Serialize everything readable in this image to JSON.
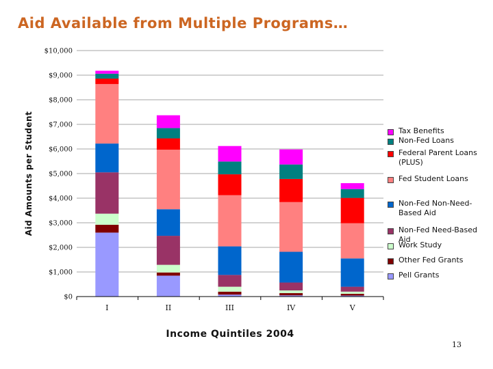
{
  "page": {
    "title": "Aid Available from Multiple Programs…",
    "page_number": "13"
  },
  "chart_data": {
    "type": "bar",
    "stacked": true,
    "title": "Aid Available from Multiple Programs…",
    "xlabel": "Income Quintiles 2004",
    "ylabel": "Aid Amounts per Student",
    "categories": [
      "I",
      "II",
      "III",
      "IV",
      "V"
    ],
    "ylim": [
      0,
      10000
    ],
    "yticks": [
      0,
      1000,
      2000,
      3000,
      4000,
      5000,
      6000,
      7000,
      8000,
      9000,
      10000
    ],
    "ytick_labels": [
      "$0",
      "$1,000",
      "$2,000",
      "$3,000",
      "$4,000",
      "$5,000",
      "$6,000",
      "$7,000",
      "$8,000",
      "$9,000",
      "$10,000"
    ],
    "grid": true,
    "legend_position": "right",
    "series": [
      {
        "name": "Pell Grants",
        "color": "#9999ff",
        "values": [
          2600,
          850,
          80,
          50,
          40
        ]
      },
      {
        "name": "Other Fed Grants",
        "color": "#800000",
        "values": [
          320,
          130,
          120,
          90,
          70
        ]
      },
      {
        "name": "Work Study",
        "color": "#ccffcc",
        "values": [
          450,
          310,
          200,
          110,
          90
        ]
      },
      {
        "name": "Non-Fed Need-Based Aid",
        "color": "#993366",
        "values": [
          1680,
          1180,
          480,
          320,
          200
        ]
      },
      {
        "name": "Non-Fed Non-Need-Based Aid",
        "color": "#0066cc",
        "values": [
          1170,
          1080,
          1160,
          1250,
          1150
        ]
      },
      {
        "name": "Fed Student Loans",
        "color": "#ff8080",
        "values": [
          2420,
          2420,
          2080,
          2020,
          1430
        ]
      },
      {
        "name": "Federal Parent Loans (PLUS)",
        "color": "#ff0000",
        "values": [
          220,
          460,
          850,
          940,
          1030
        ]
      },
      {
        "name": "Non-Fed Loans",
        "color": "#008080",
        "values": [
          200,
          420,
          520,
          590,
          360
        ]
      },
      {
        "name": "Tax Benefits",
        "color": "#ff00ff",
        "values": [
          120,
          520,
          630,
          610,
          240
        ]
      }
    ]
  }
}
